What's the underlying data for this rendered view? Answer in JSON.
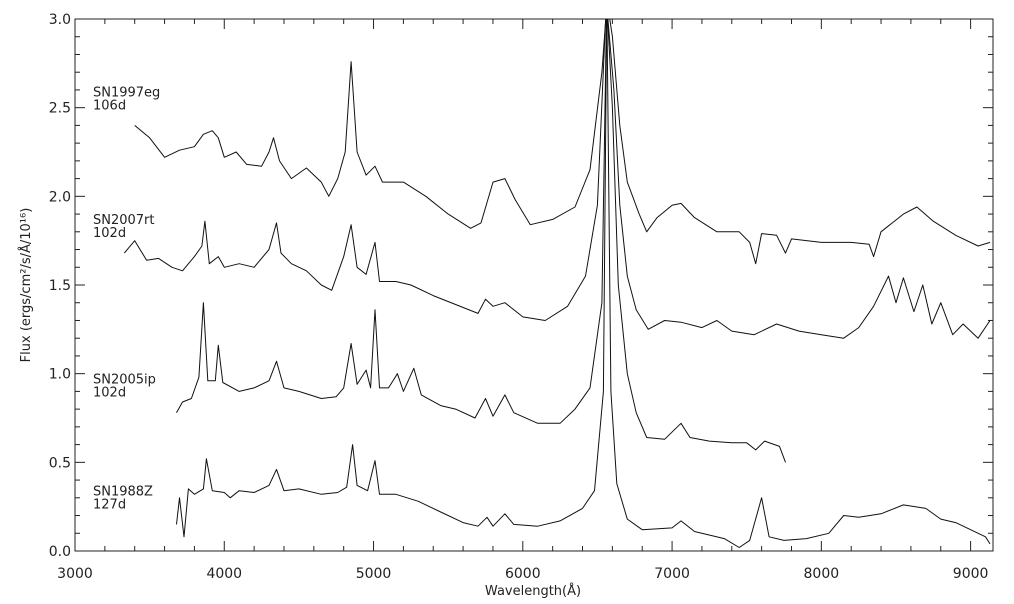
{
  "chart_data": {
    "type": "line",
    "xlabel": "Wavelength(Å)",
    "ylabel": "Flux (ergs/cm²/s/Å/10¹⁶)",
    "xlim": [
      3000,
      9150
    ],
    "ylim": [
      0.0,
      3.0
    ],
    "x_ticks": [
      "3000",
      "4000",
      "5000",
      "6000",
      "7000",
      "8000",
      "9000"
    ],
    "y_ticks": [
      "0.0",
      "0.5",
      "1.0",
      "1.5",
      "2.0",
      "2.5",
      "3.0"
    ],
    "grid": false,
    "series": [
      {
        "name": "SN1997eg",
        "epoch": "106d",
        "points": [
          [
            3400,
            2.4
          ],
          [
            3500,
            2.33
          ],
          [
            3600,
            2.22
          ],
          [
            3700,
            2.26
          ],
          [
            3800,
            2.28
          ],
          [
            3860,
            2.35
          ],
          [
            3920,
            2.37
          ],
          [
            3960,
            2.33
          ],
          [
            4000,
            2.22
          ],
          [
            4080,
            2.25
          ],
          [
            4150,
            2.18
          ],
          [
            4250,
            2.17
          ],
          [
            4300,
            2.25
          ],
          [
            4330,
            2.33
          ],
          [
            4370,
            2.2
          ],
          [
            4450,
            2.1
          ],
          [
            4550,
            2.16
          ],
          [
            4650,
            2.08
          ],
          [
            4700,
            2.0
          ],
          [
            4760,
            2.1
          ],
          [
            4810,
            2.25
          ],
          [
            4850,
            2.76
          ],
          [
            4890,
            2.25
          ],
          [
            4950,
            2.12
          ],
          [
            5010,
            2.17
          ],
          [
            5060,
            2.08
          ],
          [
            5200,
            2.08
          ],
          [
            5350,
            2.0
          ],
          [
            5500,
            1.9
          ],
          [
            5650,
            1.82
          ],
          [
            5720,
            1.85
          ],
          [
            5800,
            2.08
          ],
          [
            5880,
            2.1
          ],
          [
            5950,
            1.98
          ],
          [
            6050,
            1.84
          ],
          [
            6200,
            1.87
          ],
          [
            6350,
            1.94
          ],
          [
            6450,
            2.15
          ],
          [
            6530,
            2.7
          ],
          [
            6565,
            3.1
          ],
          [
            6600,
            2.9
          ],
          [
            6650,
            2.4
          ],
          [
            6700,
            2.08
          ],
          [
            6780,
            1.9
          ],
          [
            6830,
            1.8
          ],
          [
            6900,
            1.88
          ],
          [
            7000,
            1.95
          ],
          [
            7060,
            1.96
          ],
          [
            7150,
            1.88
          ],
          [
            7300,
            1.8
          ],
          [
            7450,
            1.8
          ],
          [
            7520,
            1.74
          ],
          [
            7560,
            1.62
          ],
          [
            7600,
            1.79
          ],
          [
            7700,
            1.78
          ],
          [
            7760,
            1.68
          ],
          [
            7800,
            1.76
          ],
          [
            8000,
            1.74
          ],
          [
            8200,
            1.74
          ],
          [
            8320,
            1.73
          ],
          [
            8350,
            1.66
          ],
          [
            8400,
            1.8
          ],
          [
            8550,
            1.9
          ],
          [
            8640,
            1.94
          ],
          [
            8750,
            1.86
          ],
          [
            8900,
            1.78
          ],
          [
            9050,
            1.72
          ],
          [
            9130,
            1.74
          ]
        ]
      },
      {
        "name": "SN2007rt",
        "epoch": "102d",
        "points": [
          [
            3330,
            1.68
          ],
          [
            3400,
            1.75
          ],
          [
            3480,
            1.64
          ],
          [
            3560,
            1.65
          ],
          [
            3650,
            1.6
          ],
          [
            3720,
            1.58
          ],
          [
            3800,
            1.66
          ],
          [
            3850,
            1.72
          ],
          [
            3870,
            1.86
          ],
          [
            3900,
            1.62
          ],
          [
            3960,
            1.66
          ],
          [
            4000,
            1.6
          ],
          [
            4100,
            1.62
          ],
          [
            4200,
            1.6
          ],
          [
            4300,
            1.7
          ],
          [
            4350,
            1.85
          ],
          [
            4380,
            1.68
          ],
          [
            4450,
            1.62
          ],
          [
            4550,
            1.58
          ],
          [
            4650,
            1.5
          ],
          [
            4720,
            1.47
          ],
          [
            4800,
            1.66
          ],
          [
            4850,
            1.84
          ],
          [
            4890,
            1.6
          ],
          [
            4950,
            1.56
          ],
          [
            5010,
            1.74
          ],
          [
            5040,
            1.52
          ],
          [
            5150,
            1.52
          ],
          [
            5250,
            1.5
          ],
          [
            5400,
            1.44
          ],
          [
            5550,
            1.39
          ],
          [
            5700,
            1.34
          ],
          [
            5750,
            1.42
          ],
          [
            5800,
            1.38
          ],
          [
            5880,
            1.4
          ],
          [
            6000,
            1.32
          ],
          [
            6150,
            1.3
          ],
          [
            6300,
            1.38
          ],
          [
            6420,
            1.55
          ],
          [
            6500,
            1.95
          ],
          [
            6560,
            3.1
          ],
          [
            6610,
            2.6
          ],
          [
            6650,
            1.95
          ],
          [
            6700,
            1.55
          ],
          [
            6760,
            1.36
          ],
          [
            6840,
            1.25
          ],
          [
            6950,
            1.3
          ],
          [
            7060,
            1.29
          ],
          [
            7200,
            1.26
          ],
          [
            7300,
            1.3
          ],
          [
            7400,
            1.24
          ],
          [
            7550,
            1.22
          ],
          [
            7700,
            1.28
          ],
          [
            7850,
            1.24
          ],
          [
            8000,
            1.22
          ],
          [
            8150,
            1.2
          ],
          [
            8250,
            1.26
          ],
          [
            8350,
            1.38
          ],
          [
            8450,
            1.55
          ],
          [
            8500,
            1.4
          ],
          [
            8550,
            1.54
          ],
          [
            8620,
            1.35
          ],
          [
            8680,
            1.5
          ],
          [
            8740,
            1.28
          ],
          [
            8800,
            1.4
          ],
          [
            8880,
            1.22
          ],
          [
            8950,
            1.28
          ],
          [
            9050,
            1.2
          ],
          [
            9130,
            1.3
          ]
        ]
      },
      {
        "name": "SN2005ip",
        "epoch": "102d",
        "points": [
          [
            3680,
            0.78
          ],
          [
            3720,
            0.84
          ],
          [
            3780,
            0.86
          ],
          [
            3830,
            0.98
          ],
          [
            3860,
            1.4
          ],
          [
            3890,
            0.96
          ],
          [
            3940,
            0.96
          ],
          [
            3960,
            1.16
          ],
          [
            3990,
            0.95
          ],
          [
            4100,
            0.9
          ],
          [
            4200,
            0.92
          ],
          [
            4300,
            0.96
          ],
          [
            4350,
            1.07
          ],
          [
            4400,
            0.92
          ],
          [
            4500,
            0.9
          ],
          [
            4650,
            0.86
          ],
          [
            4750,
            0.87
          ],
          [
            4800,
            0.92
          ],
          [
            4850,
            1.17
          ],
          [
            4890,
            0.94
          ],
          [
            4950,
            1.02
          ],
          [
            4980,
            0.92
          ],
          [
            5010,
            1.36
          ],
          [
            5040,
            0.92
          ],
          [
            5100,
            0.92
          ],
          [
            5160,
            1.0
          ],
          [
            5200,
            0.9
          ],
          [
            5270,
            1.03
          ],
          [
            5320,
            0.88
          ],
          [
            5450,
            0.82
          ],
          [
            5550,
            0.8
          ],
          [
            5680,
            0.75
          ],
          [
            5750,
            0.86
          ],
          [
            5800,
            0.76
          ],
          [
            5880,
            0.88
          ],
          [
            5940,
            0.78
          ],
          [
            6100,
            0.72
          ],
          [
            6250,
            0.72
          ],
          [
            6350,
            0.8
          ],
          [
            6450,
            0.92
          ],
          [
            6530,
            1.4
          ],
          [
            6562,
            3.1
          ],
          [
            6600,
            2.5
          ],
          [
            6640,
            1.5
          ],
          [
            6700,
            1.0
          ],
          [
            6760,
            0.78
          ],
          [
            6830,
            0.64
          ],
          [
            6950,
            0.63
          ],
          [
            7060,
            0.72
          ],
          [
            7120,
            0.64
          ],
          [
            7250,
            0.62
          ],
          [
            7400,
            0.61
          ],
          [
            7500,
            0.61
          ],
          [
            7560,
            0.57
          ],
          [
            7620,
            0.62
          ],
          [
            7720,
            0.59
          ],
          [
            7760,
            0.5
          ]
        ]
      },
      {
        "name": "SN1988Z",
        "epoch": "127d",
        "points": [
          [
            3680,
            0.15
          ],
          [
            3700,
            0.3
          ],
          [
            3730,
            0.08
          ],
          [
            3760,
            0.35
          ],
          [
            3800,
            0.32
          ],
          [
            3860,
            0.35
          ],
          [
            3880,
            0.52
          ],
          [
            3920,
            0.34
          ],
          [
            4000,
            0.33
          ],
          [
            4040,
            0.3
          ],
          [
            4100,
            0.34
          ],
          [
            4200,
            0.33
          ],
          [
            4300,
            0.37
          ],
          [
            4350,
            0.46
          ],
          [
            4400,
            0.34
          ],
          [
            4500,
            0.35
          ],
          [
            4650,
            0.32
          ],
          [
            4760,
            0.33
          ],
          [
            4820,
            0.36
          ],
          [
            4860,
            0.6
          ],
          [
            4890,
            0.37
          ],
          [
            4960,
            0.34
          ],
          [
            5010,
            0.51
          ],
          [
            5040,
            0.32
          ],
          [
            5150,
            0.32
          ],
          [
            5300,
            0.28
          ],
          [
            5450,
            0.22
          ],
          [
            5600,
            0.16
          ],
          [
            5700,
            0.14
          ],
          [
            5760,
            0.19
          ],
          [
            5800,
            0.14
          ],
          [
            5880,
            0.21
          ],
          [
            5940,
            0.15
          ],
          [
            6100,
            0.14
          ],
          [
            6250,
            0.17
          ],
          [
            6400,
            0.24
          ],
          [
            6480,
            0.34
          ],
          [
            6540,
            0.9
          ],
          [
            6563,
            3.1
          ],
          [
            6590,
            0.9
          ],
          [
            6630,
            0.38
          ],
          [
            6700,
            0.18
          ],
          [
            6800,
            0.12
          ],
          [
            7000,
            0.13
          ],
          [
            7060,
            0.17
          ],
          [
            7150,
            0.11
          ],
          [
            7350,
            0.07
          ],
          [
            7450,
            0.02
          ],
          [
            7520,
            0.06
          ],
          [
            7600,
            0.3
          ],
          [
            7650,
            0.08
          ],
          [
            7750,
            0.06
          ],
          [
            7900,
            0.07
          ],
          [
            8050,
            0.1
          ],
          [
            8150,
            0.2
          ],
          [
            8250,
            0.19
          ],
          [
            8400,
            0.21
          ],
          [
            8550,
            0.26
          ],
          [
            8700,
            0.24
          ],
          [
            8800,
            0.18
          ],
          [
            8900,
            0.16
          ],
          [
            9000,
            0.12
          ],
          [
            9100,
            0.08
          ],
          [
            9130,
            0.04
          ]
        ]
      }
    ]
  }
}
